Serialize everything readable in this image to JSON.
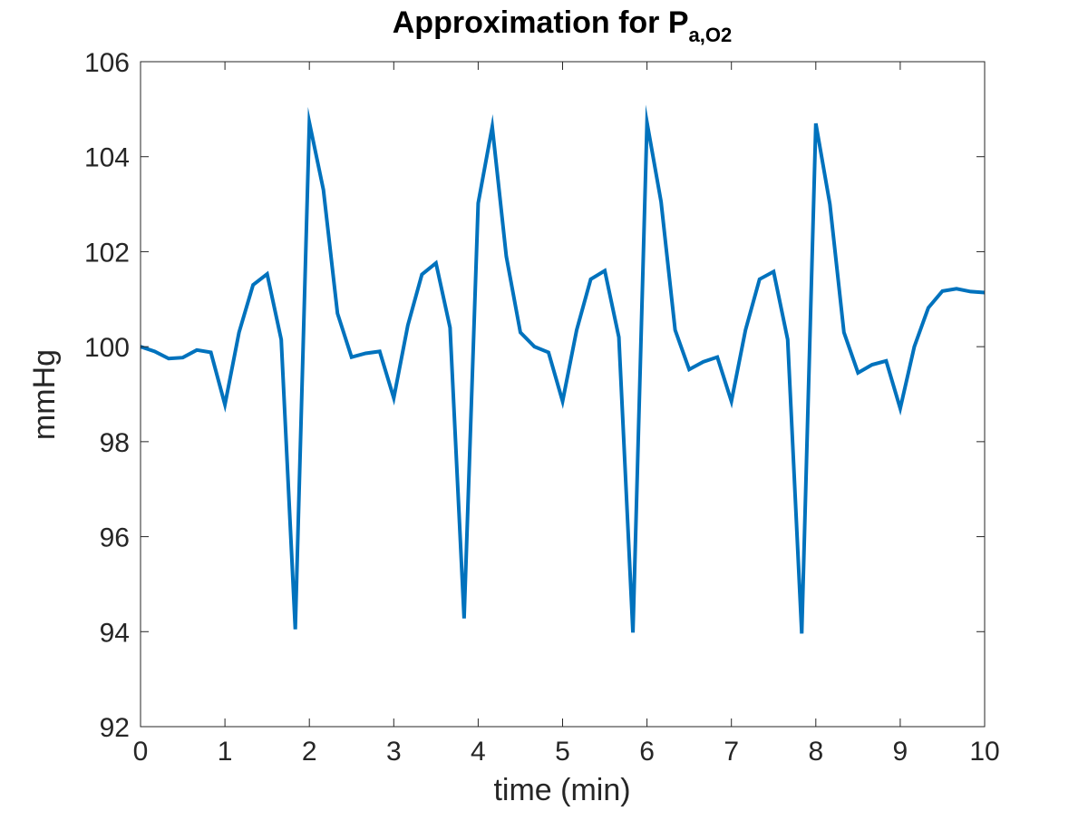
{
  "chart_data": {
    "type": "line",
    "title": {
      "main": "Approximation for P",
      "subscript": "a,O2"
    },
    "xlabel": "time (min)",
    "ylabel": "mmHg",
    "xlim": [
      0,
      10
    ],
    "ylim": [
      92,
      106
    ],
    "xticks": [
      0,
      1,
      2,
      3,
      4,
      5,
      6,
      7,
      8,
      9,
      10
    ],
    "yticks": [
      92,
      94,
      96,
      98,
      100,
      102,
      104,
      106
    ],
    "grid": false,
    "box": true,
    "series": [
      {
        "color": "#0072bd",
        "x": [
          0,
          0.1667,
          0.3333,
          0.5,
          0.6667,
          0.8333,
          1.0,
          1.1667,
          1.3333,
          1.5,
          1.6667,
          1.8333,
          2.0,
          2.1667,
          2.3333,
          2.5,
          2.6667,
          2.8333,
          3.0,
          3.1667,
          3.3333,
          3.5,
          3.6667,
          3.8333,
          4.0,
          4.1667,
          4.3333,
          4.5,
          4.6667,
          4.8333,
          5.0,
          5.1667,
          5.3333,
          5.5,
          5.6667,
          5.8333,
          6.0,
          6.1667,
          6.3333,
          6.5,
          6.6667,
          6.8333,
          7.0,
          7.1667,
          7.3333,
          7.5,
          7.6667,
          7.8333,
          8.0,
          8.1667,
          8.3333,
          8.5,
          8.6667,
          8.8333,
          9.0,
          9.1667,
          9.3333,
          9.5,
          9.6667,
          9.8333,
          10.0
        ],
        "y": [
          100.0,
          99.9,
          99.75,
          99.77,
          99.93,
          99.88,
          98.78,
          100.3,
          101.3,
          101.53,
          100.15,
          94.05,
          104.72,
          103.3,
          100.7,
          99.78,
          99.86,
          99.9,
          98.92,
          100.45,
          101.52,
          101.76,
          100.4,
          94.28,
          103.02,
          104.63,
          101.9,
          100.3,
          100.0,
          99.88,
          98.85,
          100.35,
          101.42,
          101.6,
          100.2,
          93.98,
          104.72,
          103.05,
          100.35,
          99.52,
          99.68,
          99.78,
          98.85,
          100.35,
          101.42,
          101.58,
          100.15,
          93.96,
          104.7,
          103.0,
          100.3,
          99.45,
          99.62,
          99.7,
          98.7,
          100.0,
          100.82,
          101.17,
          101.22,
          101.16,
          101.14
        ]
      }
    ]
  }
}
